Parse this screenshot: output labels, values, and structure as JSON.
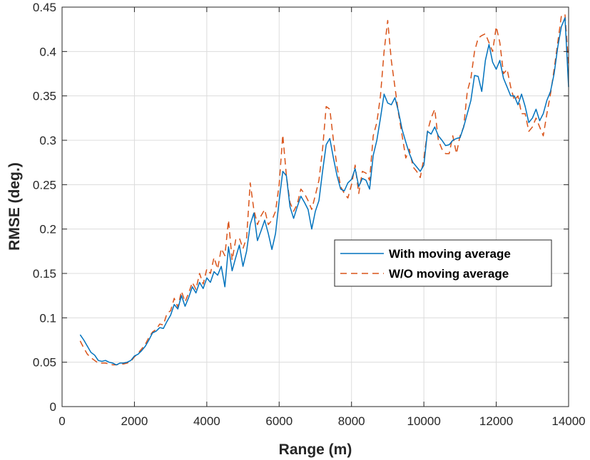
{
  "chart_data": {
    "type": "line",
    "title": "",
    "xlabel": "Range (m)",
    "ylabel": "RMSE (deg.)",
    "xlim": [
      0,
      14000
    ],
    "ylim": [
      0,
      0.45
    ],
    "xticks": [
      0,
      2000,
      4000,
      6000,
      8000,
      10000,
      12000,
      14000
    ],
    "yticks": [
      0,
      0.05,
      0.1,
      0.15,
      0.2,
      0.25,
      0.3,
      0.35,
      0.4,
      0.45
    ],
    "xtick_labels": [
      "0",
      "2000",
      "4000",
      "6000",
      "8000",
      "10000",
      "12000",
      "14000"
    ],
    "ytick_labels": [
      "0",
      "0.05",
      "0.1",
      "0.15",
      "0.2",
      "0.25",
      "0.3",
      "0.35",
      "0.4",
      "0.45"
    ],
    "grid": true,
    "legend_position": "center-right",
    "series": [
      {
        "name": "With moving average",
        "color": "#0072BD",
        "style": "solid",
        "points": [
          [
            500,
            0.081
          ],
          [
            600,
            0.075
          ],
          [
            700,
            0.068
          ],
          [
            800,
            0.061
          ],
          [
            900,
            0.058
          ],
          [
            1000,
            0.052
          ],
          [
            1100,
            0.051
          ],
          [
            1200,
            0.052
          ],
          [
            1300,
            0.05
          ],
          [
            1400,
            0.049
          ],
          [
            1500,
            0.047
          ],
          [
            1600,
            0.049
          ],
          [
            1700,
            0.049
          ],
          [
            1800,
            0.05
          ],
          [
            1900,
            0.052
          ],
          [
            2000,
            0.057
          ],
          [
            2100,
            0.059
          ],
          [
            2200,
            0.063
          ],
          [
            2300,
            0.068
          ],
          [
            2400,
            0.075
          ],
          [
            2500,
            0.083
          ],
          [
            2600,
            0.085
          ],
          [
            2700,
            0.089
          ],
          [
            2800,
            0.088
          ],
          [
            2900,
            0.096
          ],
          [
            3000,
            0.103
          ],
          [
            3100,
            0.115
          ],
          [
            3200,
            0.11
          ],
          [
            3300,
            0.125
          ],
          [
            3400,
            0.113
          ],
          [
            3500,
            0.123
          ],
          [
            3600,
            0.135
          ],
          [
            3700,
            0.128
          ],
          [
            3800,
            0.14
          ],
          [
            3900,
            0.133
          ],
          [
            4000,
            0.145
          ],
          [
            4100,
            0.14
          ],
          [
            4200,
            0.152
          ],
          [
            4300,
            0.148
          ],
          [
            4400,
            0.158
          ],
          [
            4500,
            0.135
          ],
          [
            4600,
            0.18
          ],
          [
            4700,
            0.153
          ],
          [
            4800,
            0.168
          ],
          [
            4900,
            0.182
          ],
          [
            5000,
            0.158
          ],
          [
            5100,
            0.175
          ],
          [
            5200,
            0.205
          ],
          [
            5300,
            0.218
          ],
          [
            5400,
            0.187
          ],
          [
            5500,
            0.198
          ],
          [
            5600,
            0.21
          ],
          [
            5700,
            0.195
          ],
          [
            5800,
            0.177
          ],
          [
            5900,
            0.195
          ],
          [
            6000,
            0.232
          ],
          [
            6100,
            0.265
          ],
          [
            6200,
            0.26
          ],
          [
            6300,
            0.225
          ],
          [
            6400,
            0.212
          ],
          [
            6500,
            0.225
          ],
          [
            6600,
            0.237
          ],
          [
            6700,
            0.23
          ],
          [
            6800,
            0.222
          ],
          [
            6900,
            0.2
          ],
          [
            7000,
            0.22
          ],
          [
            7100,
            0.232
          ],
          [
            7200,
            0.265
          ],
          [
            7300,
            0.295
          ],
          [
            7400,
            0.302
          ],
          [
            7500,
            0.28
          ],
          [
            7600,
            0.26
          ],
          [
            7700,
            0.245
          ],
          [
            7800,
            0.243
          ],
          [
            7900,
            0.252
          ],
          [
            8000,
            0.256
          ],
          [
            8100,
            0.268
          ],
          [
            8200,
            0.248
          ],
          [
            8300,
            0.257
          ],
          [
            8400,
            0.255
          ],
          [
            8500,
            0.245
          ],
          [
            8600,
            0.283
          ],
          [
            8700,
            0.3
          ],
          [
            8800,
            0.325
          ],
          [
            8900,
            0.352
          ],
          [
            9000,
            0.342
          ],
          [
            9100,
            0.34
          ],
          [
            9200,
            0.348
          ],
          [
            9300,
            0.332
          ],
          [
            9400,
            0.312
          ],
          [
            9500,
            0.298
          ],
          [
            9600,
            0.285
          ],
          [
            9700,
            0.275
          ],
          [
            9800,
            0.27
          ],
          [
            9900,
            0.265
          ],
          [
            10000,
            0.272
          ],
          [
            10100,
            0.31
          ],
          [
            10200,
            0.307
          ],
          [
            10300,
            0.315
          ],
          [
            10400,
            0.305
          ],
          [
            10500,
            0.3
          ],
          [
            10600,
            0.294
          ],
          [
            10700,
            0.295
          ],
          [
            10800,
            0.3
          ],
          [
            10900,
            0.302
          ],
          [
            11000,
            0.303
          ],
          [
            11100,
            0.315
          ],
          [
            11200,
            0.33
          ],
          [
            11300,
            0.345
          ],
          [
            11400,
            0.373
          ],
          [
            11500,
            0.372
          ],
          [
            11600,
            0.355
          ],
          [
            11700,
            0.39
          ],
          [
            11800,
            0.408
          ],
          [
            11900,
            0.388
          ],
          [
            12000,
            0.38
          ],
          [
            12100,
            0.39
          ],
          [
            12200,
            0.37
          ],
          [
            12300,
            0.36
          ],
          [
            12400,
            0.35
          ],
          [
            12500,
            0.35
          ],
          [
            12600,
            0.34
          ],
          [
            12700,
            0.352
          ],
          [
            12800,
            0.338
          ],
          [
            12900,
            0.32
          ],
          [
            13000,
            0.325
          ],
          [
            13100,
            0.335
          ],
          [
            13200,
            0.322
          ],
          [
            13300,
            0.33
          ],
          [
            13400,
            0.345
          ],
          [
            13500,
            0.355
          ],
          [
            13600,
            0.375
          ],
          [
            13700,
            0.405
          ],
          [
            13800,
            0.428
          ],
          [
            13900,
            0.438
          ],
          [
            14000,
            0.36
          ]
        ]
      },
      {
        "name": "W/O moving average",
        "color": "#D95319",
        "style": "dashed",
        "points": [
          [
            500,
            0.074
          ],
          [
            600,
            0.066
          ],
          [
            700,
            0.059
          ],
          [
            800,
            0.055
          ],
          [
            900,
            0.052
          ],
          [
            1000,
            0.049
          ],
          [
            1100,
            0.049
          ],
          [
            1200,
            0.049
          ],
          [
            1300,
            0.048
          ],
          [
            1400,
            0.047
          ],
          [
            1500,
            0.047
          ],
          [
            1600,
            0.048
          ],
          [
            1700,
            0.048
          ],
          [
            1800,
            0.049
          ],
          [
            1900,
            0.051
          ],
          [
            2000,
            0.056
          ],
          [
            2100,
            0.06
          ],
          [
            2200,
            0.065
          ],
          [
            2300,
            0.07
          ],
          [
            2400,
            0.078
          ],
          [
            2500,
            0.084
          ],
          [
            2600,
            0.087
          ],
          [
            2700,
            0.093
          ],
          [
            2800,
            0.092
          ],
          [
            2900,
            0.105
          ],
          [
            3000,
            0.108
          ],
          [
            3100,
            0.122
          ],
          [
            3200,
            0.112
          ],
          [
            3300,
            0.13
          ],
          [
            3400,
            0.118
          ],
          [
            3500,
            0.128
          ],
          [
            3600,
            0.14
          ],
          [
            3700,
            0.132
          ],
          [
            3800,
            0.15
          ],
          [
            3900,
            0.138
          ],
          [
            4000,
            0.155
          ],
          [
            4100,
            0.15
          ],
          [
            4200,
            0.168
          ],
          [
            4300,
            0.155
          ],
          [
            4400,
            0.178
          ],
          [
            4500,
            0.17
          ],
          [
            4600,
            0.21
          ],
          [
            4700,
            0.165
          ],
          [
            4800,
            0.188
          ],
          [
            4900,
            0.19
          ],
          [
            5000,
            0.178
          ],
          [
            5100,
            0.19
          ],
          [
            5200,
            0.252
          ],
          [
            5300,
            0.222
          ],
          [
            5400,
            0.205
          ],
          [
            5500,
            0.215
          ],
          [
            5600,
            0.222
          ],
          [
            5700,
            0.205
          ],
          [
            5800,
            0.21
          ],
          [
            5900,
            0.22
          ],
          [
            6000,
            0.25
          ],
          [
            6100,
            0.306
          ],
          [
            6200,
            0.26
          ],
          [
            6300,
            0.23
          ],
          [
            6400,
            0.22
          ],
          [
            6500,
            0.228
          ],
          [
            6600,
            0.245
          ],
          [
            6700,
            0.24
          ],
          [
            6800,
            0.232
          ],
          [
            6900,
            0.222
          ],
          [
            7000,
            0.238
          ],
          [
            7100,
            0.255
          ],
          [
            7200,
            0.29
          ],
          [
            7300,
            0.338
          ],
          [
            7400,
            0.335
          ],
          [
            7500,
            0.3
          ],
          [
            7600,
            0.27
          ],
          [
            7700,
            0.248
          ],
          [
            7800,
            0.24
          ],
          [
            7900,
            0.235
          ],
          [
            8000,
            0.25
          ],
          [
            8100,
            0.272
          ],
          [
            8200,
            0.24
          ],
          [
            8300,
            0.265
          ],
          [
            8400,
            0.263
          ],
          [
            8500,
            0.255
          ],
          [
            8600,
            0.305
          ],
          [
            8700,
            0.32
          ],
          [
            8800,
            0.35
          ],
          [
            8900,
            0.4
          ],
          [
            9000,
            0.435
          ],
          [
            9100,
            0.39
          ],
          [
            9200,
            0.36
          ],
          [
            9300,
            0.33
          ],
          [
            9400,
            0.305
          ],
          [
            9500,
            0.28
          ],
          [
            9600,
            0.29
          ],
          [
            9700,
            0.27
          ],
          [
            9800,
            0.265
          ],
          [
            9900,
            0.258
          ],
          [
            10000,
            0.28
          ],
          [
            10100,
            0.31
          ],
          [
            10200,
            0.325
          ],
          [
            10300,
            0.335
          ],
          [
            10400,
            0.3
          ],
          [
            10500,
            0.29
          ],
          [
            10600,
            0.285
          ],
          [
            10700,
            0.285
          ],
          [
            10800,
            0.305
          ],
          [
            10900,
            0.285
          ],
          [
            11000,
            0.305
          ],
          [
            11100,
            0.315
          ],
          [
            11200,
            0.355
          ],
          [
            11300,
            0.37
          ],
          [
            11400,
            0.4
          ],
          [
            11500,
            0.415
          ],
          [
            11600,
            0.418
          ],
          [
            11700,
            0.42
          ],
          [
            11800,
            0.41
          ],
          [
            11900,
            0.4
          ],
          [
            12000,
            0.428
          ],
          [
            12100,
            0.41
          ],
          [
            12200,
            0.375
          ],
          [
            12300,
            0.38
          ],
          [
            12400,
            0.36
          ],
          [
            12500,
            0.345
          ],
          [
            12600,
            0.35
          ],
          [
            12700,
            0.33
          ],
          [
            12800,
            0.33
          ],
          [
            12900,
            0.31
          ],
          [
            13000,
            0.315
          ],
          [
            13100,
            0.325
          ],
          [
            13200,
            0.315
          ],
          [
            13300,
            0.305
          ],
          [
            13400,
            0.33
          ],
          [
            13500,
            0.352
          ],
          [
            13600,
            0.38
          ],
          [
            13700,
            0.41
          ],
          [
            13800,
            0.44
          ],
          [
            13900,
            0.442
          ],
          [
            14000,
            0.385
          ]
        ]
      }
    ]
  }
}
